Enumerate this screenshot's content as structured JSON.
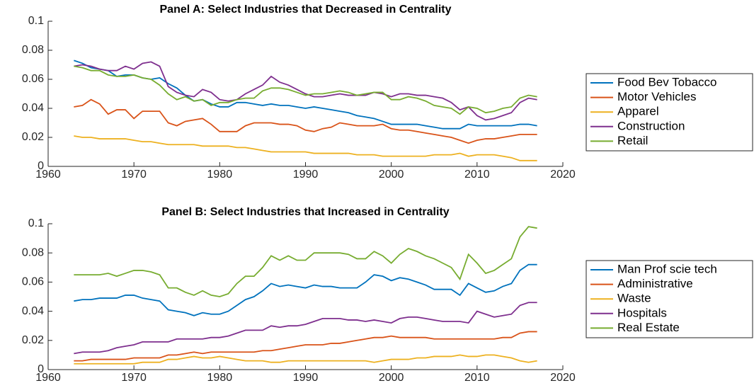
{
  "chart_data": [
    {
      "type": "line",
      "title": "Panel A: Select Industries that Decreased in Centrality",
      "x": [
        1963,
        1964,
        1965,
        1966,
        1967,
        1968,
        1969,
        1970,
        1971,
        1972,
        1973,
        1974,
        1975,
        1976,
        1977,
        1978,
        1979,
        1980,
        1981,
        1982,
        1983,
        1984,
        1985,
        1986,
        1987,
        1988,
        1989,
        1990,
        1991,
        1992,
        1993,
        1994,
        1995,
        1996,
        1997,
        1998,
        1999,
        2000,
        2001,
        2002,
        2003,
        2004,
        2005,
        2006,
        2007,
        2008,
        2009,
        2010,
        2011,
        2012,
        2013,
        2014,
        2015,
        2016,
        2017
      ],
      "xlim": [
        1960,
        2020
      ],
      "xticks": [
        1960,
        1970,
        1980,
        1990,
        2000,
        2010,
        2020
      ],
      "ylim": [
        0,
        0.1
      ],
      "yticks": [
        0,
        0.02,
        0.04,
        0.06,
        0.08,
        0.1
      ],
      "grid": false,
      "legend": "outside-right",
      "series": [
        {
          "name": "Food Bev Tobacco",
          "color": "#0072BD",
          "values": [
            0.073,
            0.071,
            0.068,
            0.067,
            0.066,
            0.062,
            0.063,
            0.063,
            0.061,
            0.06,
            0.061,
            0.057,
            0.054,
            0.049,
            0.045,
            0.046,
            0.043,
            0.041,
            0.041,
            0.044,
            0.044,
            0.043,
            0.042,
            0.043,
            0.042,
            0.042,
            0.041,
            0.04,
            0.041,
            0.04,
            0.039,
            0.038,
            0.037,
            0.035,
            0.034,
            0.033,
            0.031,
            0.029,
            0.029,
            0.029,
            0.029,
            0.028,
            0.027,
            0.026,
            0.026,
            0.026,
            0.029,
            0.028,
            0.028,
            0.028,
            0.028,
            0.028,
            0.029,
            0.029,
            0.028
          ]
        },
        {
          "name": "Motor Vehicles",
          "color": "#D95319",
          "values": [
            0.041,
            0.042,
            0.046,
            0.043,
            0.036,
            0.039,
            0.039,
            0.033,
            0.038,
            0.038,
            0.038,
            0.03,
            0.028,
            0.031,
            0.032,
            0.033,
            0.029,
            0.024,
            0.024,
            0.024,
            0.028,
            0.03,
            0.03,
            0.03,
            0.029,
            0.029,
            0.028,
            0.025,
            0.024,
            0.026,
            0.027,
            0.03,
            0.029,
            0.028,
            0.028,
            0.028,
            0.029,
            0.026,
            0.025,
            0.025,
            0.024,
            0.023,
            0.022,
            0.021,
            0.02,
            0.018,
            0.016,
            0.018,
            0.019,
            0.019,
            0.02,
            0.021,
            0.022,
            0.022,
            0.022
          ]
        },
        {
          "name": "Apparel",
          "color": "#EDB120",
          "values": [
            0.021,
            0.02,
            0.02,
            0.019,
            0.019,
            0.019,
            0.019,
            0.018,
            0.017,
            0.017,
            0.016,
            0.015,
            0.015,
            0.015,
            0.015,
            0.014,
            0.014,
            0.014,
            0.014,
            0.013,
            0.013,
            0.012,
            0.011,
            0.01,
            0.01,
            0.01,
            0.01,
            0.01,
            0.009,
            0.009,
            0.009,
            0.009,
            0.009,
            0.008,
            0.008,
            0.008,
            0.007,
            0.007,
            0.007,
            0.007,
            0.007,
            0.007,
            0.008,
            0.008,
            0.008,
            0.009,
            0.007,
            0.008,
            0.008,
            0.008,
            0.007,
            0.006,
            0.004,
            0.004,
            0.004
          ]
        },
        {
          "name": "Construction",
          "color": "#7E2F8E",
          "values": [
            0.069,
            0.07,
            0.069,
            0.067,
            0.066,
            0.066,
            0.069,
            0.067,
            0.071,
            0.072,
            0.069,
            0.055,
            0.051,
            0.049,
            0.048,
            0.053,
            0.051,
            0.046,
            0.045,
            0.046,
            0.05,
            0.053,
            0.056,
            0.062,
            0.058,
            0.056,
            0.053,
            0.05,
            0.048,
            0.048,
            0.049,
            0.05,
            0.049,
            0.049,
            0.049,
            0.051,
            0.05,
            0.048,
            0.05,
            0.05,
            0.049,
            0.049,
            0.048,
            0.047,
            0.044,
            0.039,
            0.041,
            0.035,
            0.032,
            0.033,
            0.035,
            0.037,
            0.044,
            0.047,
            0.046
          ]
        },
        {
          "name": "Retail",
          "color": "#77AC30",
          "values": [
            0.069,
            0.068,
            0.066,
            0.066,
            0.063,
            0.062,
            0.062,
            0.063,
            0.061,
            0.06,
            0.056,
            0.05,
            0.046,
            0.048,
            0.045,
            0.046,
            0.042,
            0.044,
            0.044,
            0.046,
            0.047,
            0.047,
            0.052,
            0.054,
            0.054,
            0.053,
            0.051,
            0.049,
            0.05,
            0.05,
            0.051,
            0.052,
            0.051,
            0.049,
            0.05,
            0.051,
            0.051,
            0.046,
            0.046,
            0.048,
            0.047,
            0.045,
            0.042,
            0.041,
            0.04,
            0.036,
            0.041,
            0.04,
            0.037,
            0.038,
            0.04,
            0.041,
            0.047,
            0.049,
            0.048
          ]
        }
      ]
    },
    {
      "type": "line",
      "title": "Panel B: Select Industries that Increased in Centrality",
      "x": [
        1963,
        1964,
        1965,
        1966,
        1967,
        1968,
        1969,
        1970,
        1971,
        1972,
        1973,
        1974,
        1975,
        1976,
        1977,
        1978,
        1979,
        1980,
        1981,
        1982,
        1983,
        1984,
        1985,
        1986,
        1987,
        1988,
        1989,
        1990,
        1991,
        1992,
        1993,
        1994,
        1995,
        1996,
        1997,
        1998,
        1999,
        2000,
        2001,
        2002,
        2003,
        2004,
        2005,
        2006,
        2007,
        2008,
        2009,
        2010,
        2011,
        2012,
        2013,
        2014,
        2015,
        2016,
        2017
      ],
      "xlim": [
        1960,
        2020
      ],
      "xticks": [
        1960,
        1970,
        1980,
        1990,
        2000,
        2010,
        2020
      ],
      "ylim": [
        0,
        0.1
      ],
      "yticks": [
        0,
        0.02,
        0.04,
        0.06,
        0.08,
        0.1
      ],
      "grid": false,
      "legend": "outside-right",
      "series": [
        {
          "name": "Man Prof scie tech",
          "color": "#0072BD",
          "values": [
            0.047,
            0.048,
            0.048,
            0.049,
            0.049,
            0.049,
            0.051,
            0.051,
            0.049,
            0.048,
            0.047,
            0.041,
            0.04,
            0.039,
            0.037,
            0.039,
            0.038,
            0.038,
            0.04,
            0.044,
            0.048,
            0.05,
            0.054,
            0.059,
            0.057,
            0.058,
            0.057,
            0.056,
            0.058,
            0.057,
            0.057,
            0.056,
            0.056,
            0.056,
            0.06,
            0.065,
            0.064,
            0.061,
            0.063,
            0.062,
            0.06,
            0.058,
            0.055,
            0.055,
            0.055,
            0.051,
            0.059,
            0.056,
            0.053,
            0.054,
            0.057,
            0.059,
            0.068,
            0.072,
            0.072
          ]
        },
        {
          "name": "Administrative",
          "color": "#D95319",
          "values": [
            0.006,
            0.006,
            0.007,
            0.007,
            0.007,
            0.007,
            0.007,
            0.008,
            0.008,
            0.008,
            0.008,
            0.01,
            0.01,
            0.011,
            0.012,
            0.011,
            0.012,
            0.012,
            0.012,
            0.012,
            0.012,
            0.012,
            0.013,
            0.013,
            0.014,
            0.015,
            0.016,
            0.017,
            0.017,
            0.017,
            0.018,
            0.018,
            0.019,
            0.02,
            0.021,
            0.022,
            0.022,
            0.023,
            0.022,
            0.022,
            0.022,
            0.022,
            0.021,
            0.021,
            0.021,
            0.021,
            0.021,
            0.021,
            0.021,
            0.021,
            0.022,
            0.022,
            0.025,
            0.026,
            0.026
          ]
        },
        {
          "name": "Waste",
          "color": "#EDB120",
          "values": [
            0.004,
            0.004,
            0.004,
            0.004,
            0.004,
            0.004,
            0.004,
            0.004,
            0.005,
            0.005,
            0.005,
            0.007,
            0.007,
            0.008,
            0.009,
            0.008,
            0.008,
            0.009,
            0.008,
            0.007,
            0.006,
            0.006,
            0.006,
            0.005,
            0.005,
            0.006,
            0.006,
            0.006,
            0.006,
            0.006,
            0.006,
            0.006,
            0.006,
            0.006,
            0.006,
            0.005,
            0.006,
            0.007,
            0.007,
            0.007,
            0.008,
            0.008,
            0.009,
            0.009,
            0.009,
            0.01,
            0.009,
            0.009,
            0.01,
            0.01,
            0.009,
            0.008,
            0.006,
            0.005,
            0.006
          ]
        },
        {
          "name": "Hospitals",
          "color": "#7E2F8E",
          "values": [
            0.011,
            0.012,
            0.012,
            0.012,
            0.013,
            0.015,
            0.016,
            0.017,
            0.019,
            0.019,
            0.019,
            0.019,
            0.021,
            0.021,
            0.021,
            0.021,
            0.022,
            0.022,
            0.023,
            0.025,
            0.027,
            0.027,
            0.027,
            0.03,
            0.029,
            0.03,
            0.03,
            0.031,
            0.033,
            0.035,
            0.035,
            0.035,
            0.034,
            0.034,
            0.033,
            0.034,
            0.033,
            0.032,
            0.035,
            0.036,
            0.036,
            0.035,
            0.034,
            0.033,
            0.033,
            0.033,
            0.032,
            0.04,
            0.038,
            0.036,
            0.037,
            0.038,
            0.044,
            0.046,
            0.046
          ]
        },
        {
          "name": "Real Estate",
          "color": "#77AC30",
          "values": [
            0.065,
            0.065,
            0.065,
            0.065,
            0.066,
            0.064,
            0.066,
            0.068,
            0.068,
            0.067,
            0.065,
            0.056,
            0.056,
            0.053,
            0.051,
            0.054,
            0.051,
            0.05,
            0.052,
            0.059,
            0.064,
            0.064,
            0.07,
            0.078,
            0.075,
            0.078,
            0.075,
            0.075,
            0.08,
            0.08,
            0.08,
            0.08,
            0.079,
            0.076,
            0.076,
            0.081,
            0.078,
            0.073,
            0.079,
            0.083,
            0.081,
            0.078,
            0.076,
            0.073,
            0.07,
            0.062,
            0.079,
            0.073,
            0.066,
            0.068,
            0.072,
            0.076,
            0.091,
            0.098,
            0.097
          ]
        }
      ]
    }
  ]
}
